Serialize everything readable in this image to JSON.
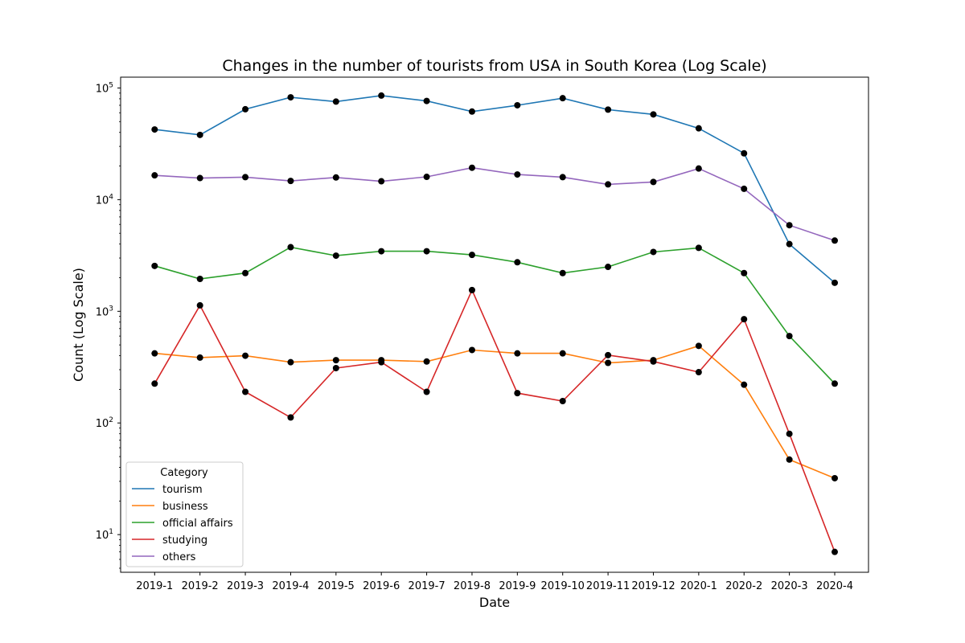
{
  "chart_data": {
    "type": "line",
    "title": "Changes in the number of tourists from USA in South Korea (Log Scale)",
    "xlabel": "Date",
    "ylabel": "Count (Log Scale)",
    "yscale": "log",
    "ylim": [
      4.6,
      125000
    ],
    "yticks": [
      {
        "value": 10,
        "base": "10",
        "exp": "1"
      },
      {
        "value": 100,
        "base": "10",
        "exp": "2"
      },
      {
        "value": 1000,
        "base": "10",
        "exp": "3"
      },
      {
        "value": 10000,
        "base": "10",
        "exp": "4"
      },
      {
        "value": 100000,
        "base": "10",
        "exp": "5"
      }
    ],
    "grid": false,
    "legend_title": "Category",
    "legend_position": "lower-left",
    "marker_color": "#000000",
    "categories": [
      "2019-1",
      "2019-2",
      "2019-3",
      "2019-4",
      "2019-5",
      "2019-6",
      "2019-7",
      "2019-8",
      "2019-9",
      "2019-10",
      "2019-11",
      "2019-12",
      "2020-1",
      "2020-2",
      "2020-3",
      "2020-4"
    ],
    "series": [
      {
        "name": "tourism",
        "color": "#1f77b4",
        "values": [
          42500,
          38000,
          64500,
          82500,
          75500,
          85500,
          76500,
          61500,
          70000,
          81000,
          64000,
          58000,
          43500,
          26000,
          4000,
          1800
        ]
      },
      {
        "name": "business",
        "color": "#ff7f0e",
        "values": [
          420,
          385,
          400,
          350,
          365,
          365,
          355,
          450,
          420,
          420,
          345,
          365,
          490,
          220,
          47,
          32
        ]
      },
      {
        "name": "official affairs",
        "color": "#2ca02c",
        "values": [
          2550,
          1950,
          2200,
          3750,
          3150,
          3450,
          3450,
          3200,
          2750,
          2200,
          2500,
          3400,
          3700,
          2200,
          600,
          225
        ]
      },
      {
        "name": "studying",
        "color": "#d62728",
        "values": [
          225,
          1130,
          190,
          112,
          310,
          350,
          190,
          1550,
          185,
          157,
          405,
          355,
          285,
          850,
          80,
          7
        ]
      },
      {
        "name": "others",
        "color": "#9467bd",
        "values": [
          16500,
          15600,
          15900,
          14700,
          15800,
          14600,
          16000,
          19300,
          16800,
          15900,
          13700,
          14400,
          19000,
          12500,
          5900,
          4300
        ]
      }
    ]
  }
}
